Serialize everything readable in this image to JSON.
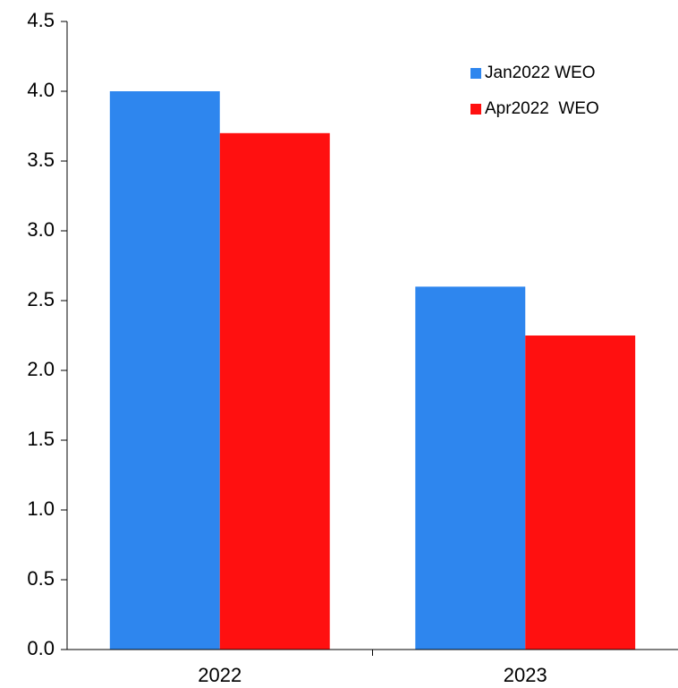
{
  "chart_data": {
    "type": "bar",
    "categories": [
      "2022",
      "2023"
    ],
    "series": [
      {
        "name": "Jan2022 WEO",
        "color": "#2e86ee",
        "values": [
          4.0,
          2.6
        ]
      },
      {
        "name": "Apr2022  WEO",
        "color": "#ff1010",
        "values": [
          3.7,
          2.25
        ]
      }
    ],
    "ylim": [
      0,
      4.5
    ],
    "yticks": [
      {
        "value": 0,
        "label": "0.0"
      },
      0.5,
      {
        "value": 1,
        "label": "1.0"
      },
      1.5,
      {
        "value": 2,
        "label": "2.0"
      },
      2.5,
      {
        "value": 3,
        "label": "3.0"
      },
      3.5,
      {
        "value": 4,
        "label": "4.0"
      },
      4.5
    ],
    "grid": false,
    "legend": "upper right"
  }
}
